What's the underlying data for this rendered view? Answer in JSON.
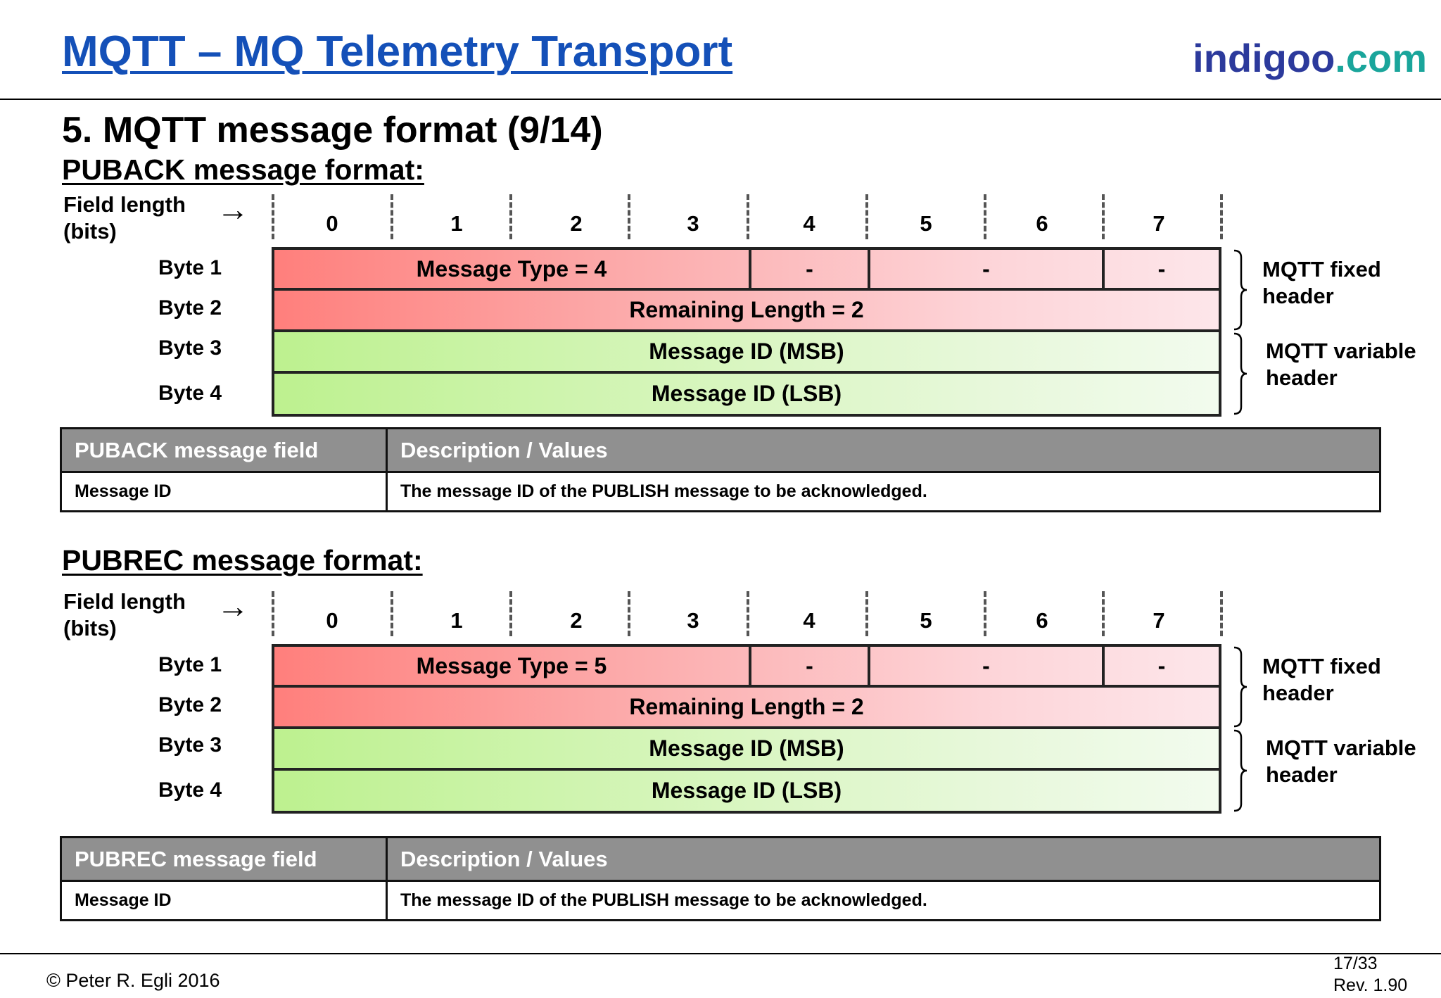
{
  "header": {
    "title": "MQTT – MQ Telemetry Transport",
    "brand_main": "indigoo",
    "brand_tld": ".com"
  },
  "section_title": "5. MQTT message format (9/14)",
  "formats": [
    {
      "heading": "PUBACK message format:",
      "field_length_label_1": "Field length",
      "field_length_label_2": "(bits)",
      "arrow": "→",
      "bits": [
        "0",
        "1",
        "2",
        "3",
        "4",
        "5",
        "6",
        "7"
      ],
      "bytes": [
        "Byte 1",
        "Byte 2",
        "Byte 3",
        "Byte 4"
      ],
      "byte1_cells": [
        "Message Type = 4",
        "-",
        "-",
        "-"
      ],
      "byte2": "Remaining Length = 2",
      "byte3": "Message ID (MSB)",
      "byte4": "Message ID (LSB)",
      "fixed_header_1": "MQTT fixed",
      "fixed_header_2": "header",
      "variable_header_1": "MQTT variable",
      "variable_header_2": "header",
      "table": {
        "col1": "PUBACK message field",
        "col2": "Description / Values",
        "row_field": "Message ID",
        "row_desc": "The message ID of the PUBLISH message to be acknowledged."
      }
    },
    {
      "heading": "PUBREC message format:",
      "field_length_label_1": "Field length",
      "field_length_label_2": "(bits)",
      "arrow": "→",
      "bits": [
        "0",
        "1",
        "2",
        "3",
        "4",
        "5",
        "6",
        "7"
      ],
      "bytes": [
        "Byte 1",
        "Byte 2",
        "Byte 3",
        "Byte 4"
      ],
      "byte1_cells": [
        "Message Type = 5",
        "-",
        "-",
        "-"
      ],
      "byte2": "Remaining Length = 2",
      "byte3": "Message ID (MSB)",
      "byte4": "Message ID (LSB)",
      "fixed_header_1": "MQTT fixed",
      "fixed_header_2": "header",
      "variable_header_1": "MQTT variable",
      "variable_header_2": "header",
      "table": {
        "col1": "PUBREC message field",
        "col2": "Description / Values",
        "row_field": "Message ID",
        "row_desc": "The message ID of the PUBLISH message to be acknowledged."
      }
    }
  ],
  "footer": {
    "copyright": "© Peter R. Egli 2016",
    "page": "17/33",
    "revision": "Rev. 1.90"
  }
}
